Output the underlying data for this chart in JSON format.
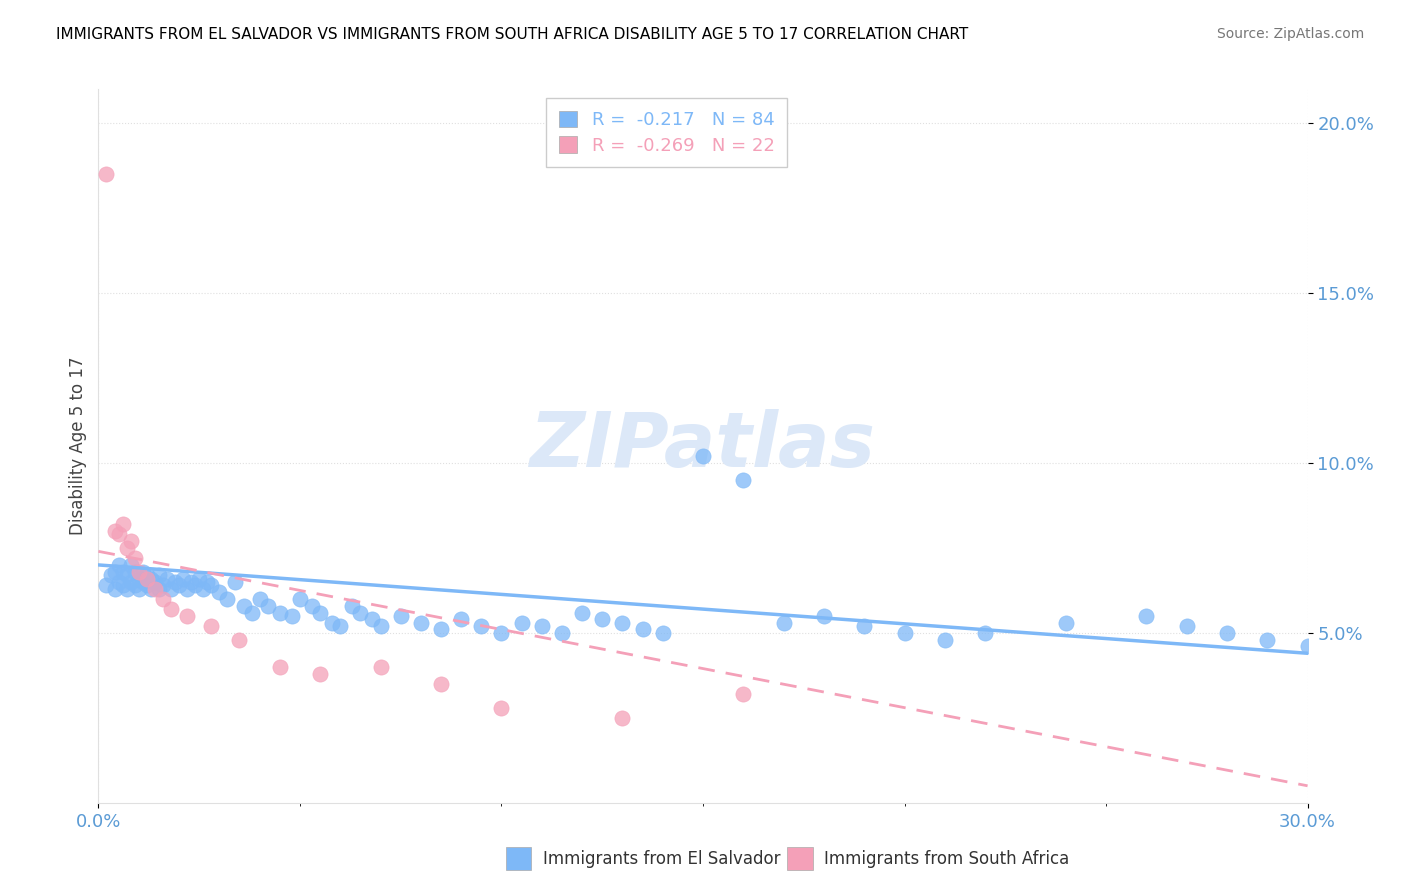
{
  "title": "IMMIGRANTS FROM EL SALVADOR VS IMMIGRANTS FROM SOUTH AFRICA DISABILITY AGE 5 TO 17 CORRELATION CHART",
  "source": "Source: ZipAtlas.com",
  "ylabel": "Disability Age 5 to 17",
  "xlim": [
    0.0,
    0.3
  ],
  "ylim": [
    0.0,
    0.21
  ],
  "el_salvador_R": -0.217,
  "el_salvador_N": 84,
  "south_africa_R": -0.269,
  "south_africa_N": 22,
  "color_el_salvador": "#7eb8f7",
  "color_south_africa": "#f4a0b8",
  "watermark_color": "#dce8f8",
  "grid_color": "#e0e0e0",
  "tick_color": "#5b9bd5",
  "el_salvador_points_x": [
    0.002,
    0.003,
    0.004,
    0.004,
    0.005,
    0.005,
    0.006,
    0.006,
    0.007,
    0.007,
    0.008,
    0.008,
    0.009,
    0.009,
    0.01,
    0.01,
    0.011,
    0.011,
    0.012,
    0.012,
    0.013,
    0.013,
    0.014,
    0.015,
    0.015,
    0.016,
    0.017,
    0.018,
    0.019,
    0.02,
    0.021,
    0.022,
    0.023,
    0.024,
    0.025,
    0.026,
    0.027,
    0.028,
    0.03,
    0.032,
    0.034,
    0.036,
    0.038,
    0.04,
    0.042,
    0.045,
    0.048,
    0.05,
    0.053,
    0.055,
    0.058,
    0.06,
    0.063,
    0.065,
    0.068,
    0.07,
    0.075,
    0.08,
    0.085,
    0.09,
    0.095,
    0.1,
    0.105,
    0.11,
    0.115,
    0.12,
    0.125,
    0.13,
    0.135,
    0.14,
    0.15,
    0.16,
    0.17,
    0.18,
    0.19,
    0.2,
    0.21,
    0.22,
    0.24,
    0.26,
    0.27,
    0.28,
    0.29,
    0.3
  ],
  "el_salvador_points_y": [
    0.064,
    0.067,
    0.063,
    0.068,
    0.065,
    0.07,
    0.064,
    0.068,
    0.063,
    0.067,
    0.065,
    0.07,
    0.064,
    0.068,
    0.063,
    0.066,
    0.065,
    0.068,
    0.064,
    0.067,
    0.063,
    0.066,
    0.065,
    0.063,
    0.067,
    0.064,
    0.066,
    0.063,
    0.065,
    0.064,
    0.066,
    0.063,
    0.065,
    0.064,
    0.066,
    0.063,
    0.065,
    0.064,
    0.062,
    0.06,
    0.065,
    0.058,
    0.056,
    0.06,
    0.058,
    0.056,
    0.055,
    0.06,
    0.058,
    0.056,
    0.053,
    0.052,
    0.058,
    0.056,
    0.054,
    0.052,
    0.055,
    0.053,
    0.051,
    0.054,
    0.052,
    0.05,
    0.053,
    0.052,
    0.05,
    0.056,
    0.054,
    0.053,
    0.051,
    0.05,
    0.102,
    0.095,
    0.053,
    0.055,
    0.052,
    0.05,
    0.048,
    0.05,
    0.053,
    0.055,
    0.052,
    0.05,
    0.048,
    0.046
  ],
  "south_africa_points_x": [
    0.002,
    0.004,
    0.005,
    0.006,
    0.007,
    0.008,
    0.009,
    0.01,
    0.012,
    0.014,
    0.016,
    0.018,
    0.022,
    0.028,
    0.035,
    0.045,
    0.055,
    0.07,
    0.085,
    0.1,
    0.13,
    0.16
  ],
  "south_africa_points_y": [
    0.185,
    0.08,
    0.079,
    0.082,
    0.075,
    0.077,
    0.072,
    0.068,
    0.066,
    0.063,
    0.06,
    0.057,
    0.055,
    0.052,
    0.048,
    0.04,
    0.038,
    0.04,
    0.035,
    0.028,
    0.025,
    0.032
  ],
  "es_line_x0": 0.0,
  "es_line_y0": 0.07,
  "es_line_x1": 0.3,
  "es_line_y1": 0.044,
  "sa_line_x0": 0.0,
  "sa_line_y0": 0.074,
  "sa_line_x1": 0.3,
  "sa_line_y1": 0.005
}
